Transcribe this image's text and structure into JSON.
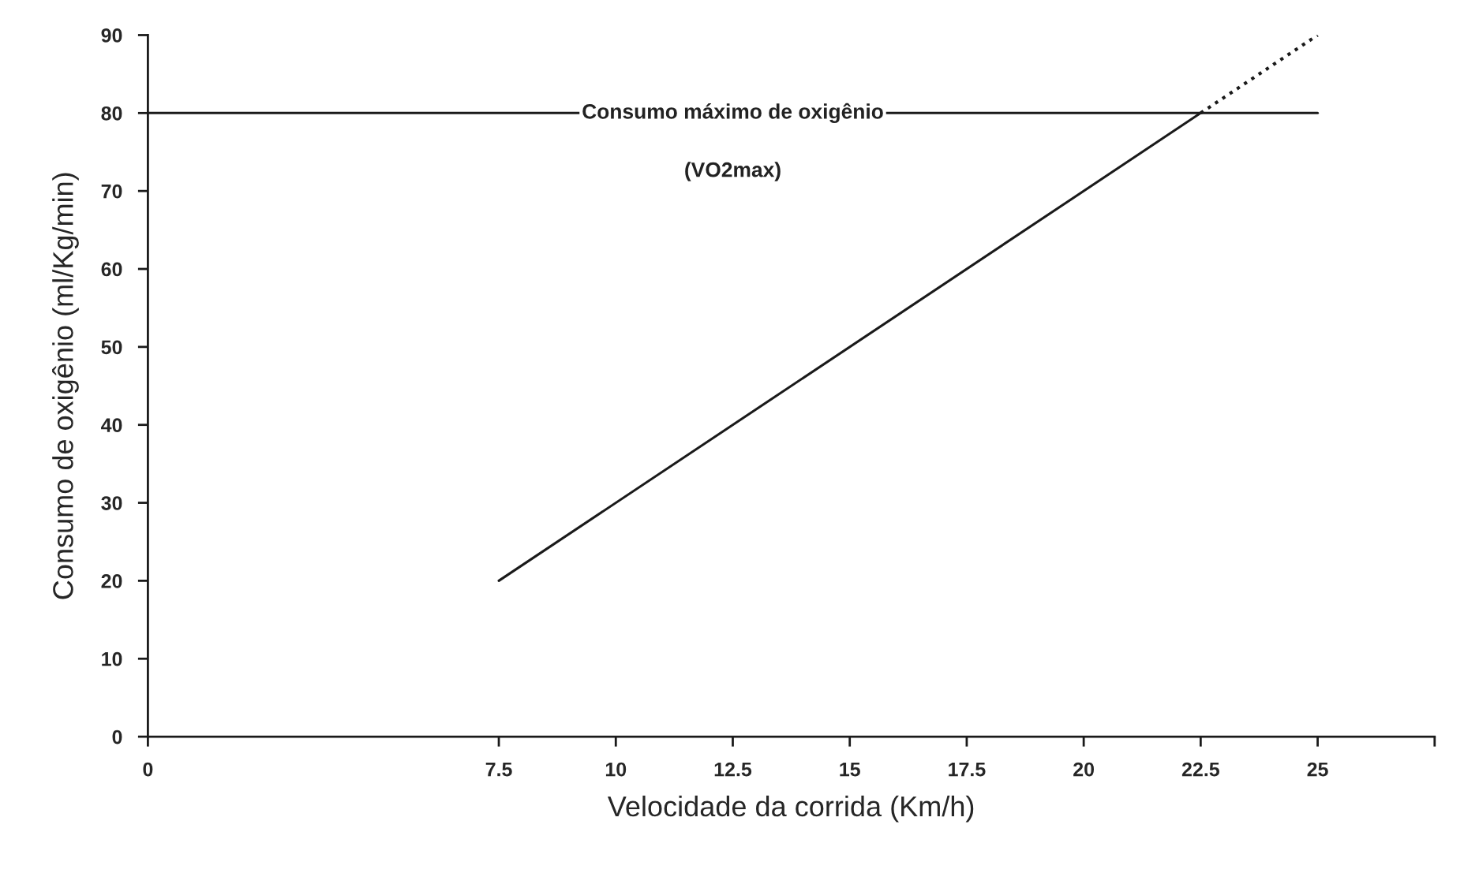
{
  "chart_data": {
    "type": "line",
    "xlabel": "Velocidade da corrida (Km/h)",
    "ylabel": "Consumo de oxigênio (ml/Kg/min)",
    "xlim": [
      0,
      27.5
    ],
    "xticks": [
      0,
      7.5,
      10,
      12.5,
      15,
      17.5,
      20,
      22.5,
      25,
      {
        "value": 27.5,
        "label": null
      }
    ],
    "ylim": [
      0,
      90
    ],
    "yticks": [
      0,
      10,
      20,
      30,
      40,
      50,
      60,
      70,
      80,
      90
    ],
    "grid": false,
    "marker": "none",
    "series": [
      {
        "x": [
          7.5,
          22.5
        ],
        "values": [
          20,
          80
        ],
        "color": "#1a1a1a",
        "line_style": "solid"
      },
      {
        "x": [
          22.5,
          25
        ],
        "values": [
          80,
          90
        ],
        "color": "#1a1a1a",
        "line_style": "dotted"
      },
      {
        "name": "Consumo máximo de oxigênio",
        "x": [
          0,
          25
        ],
        "values": [
          80,
          80
        ],
        "color": "#1a1a1a",
        "line_style": "solid"
      }
    ],
    "annotations": [
      "(VO2max)"
    ]
  }
}
